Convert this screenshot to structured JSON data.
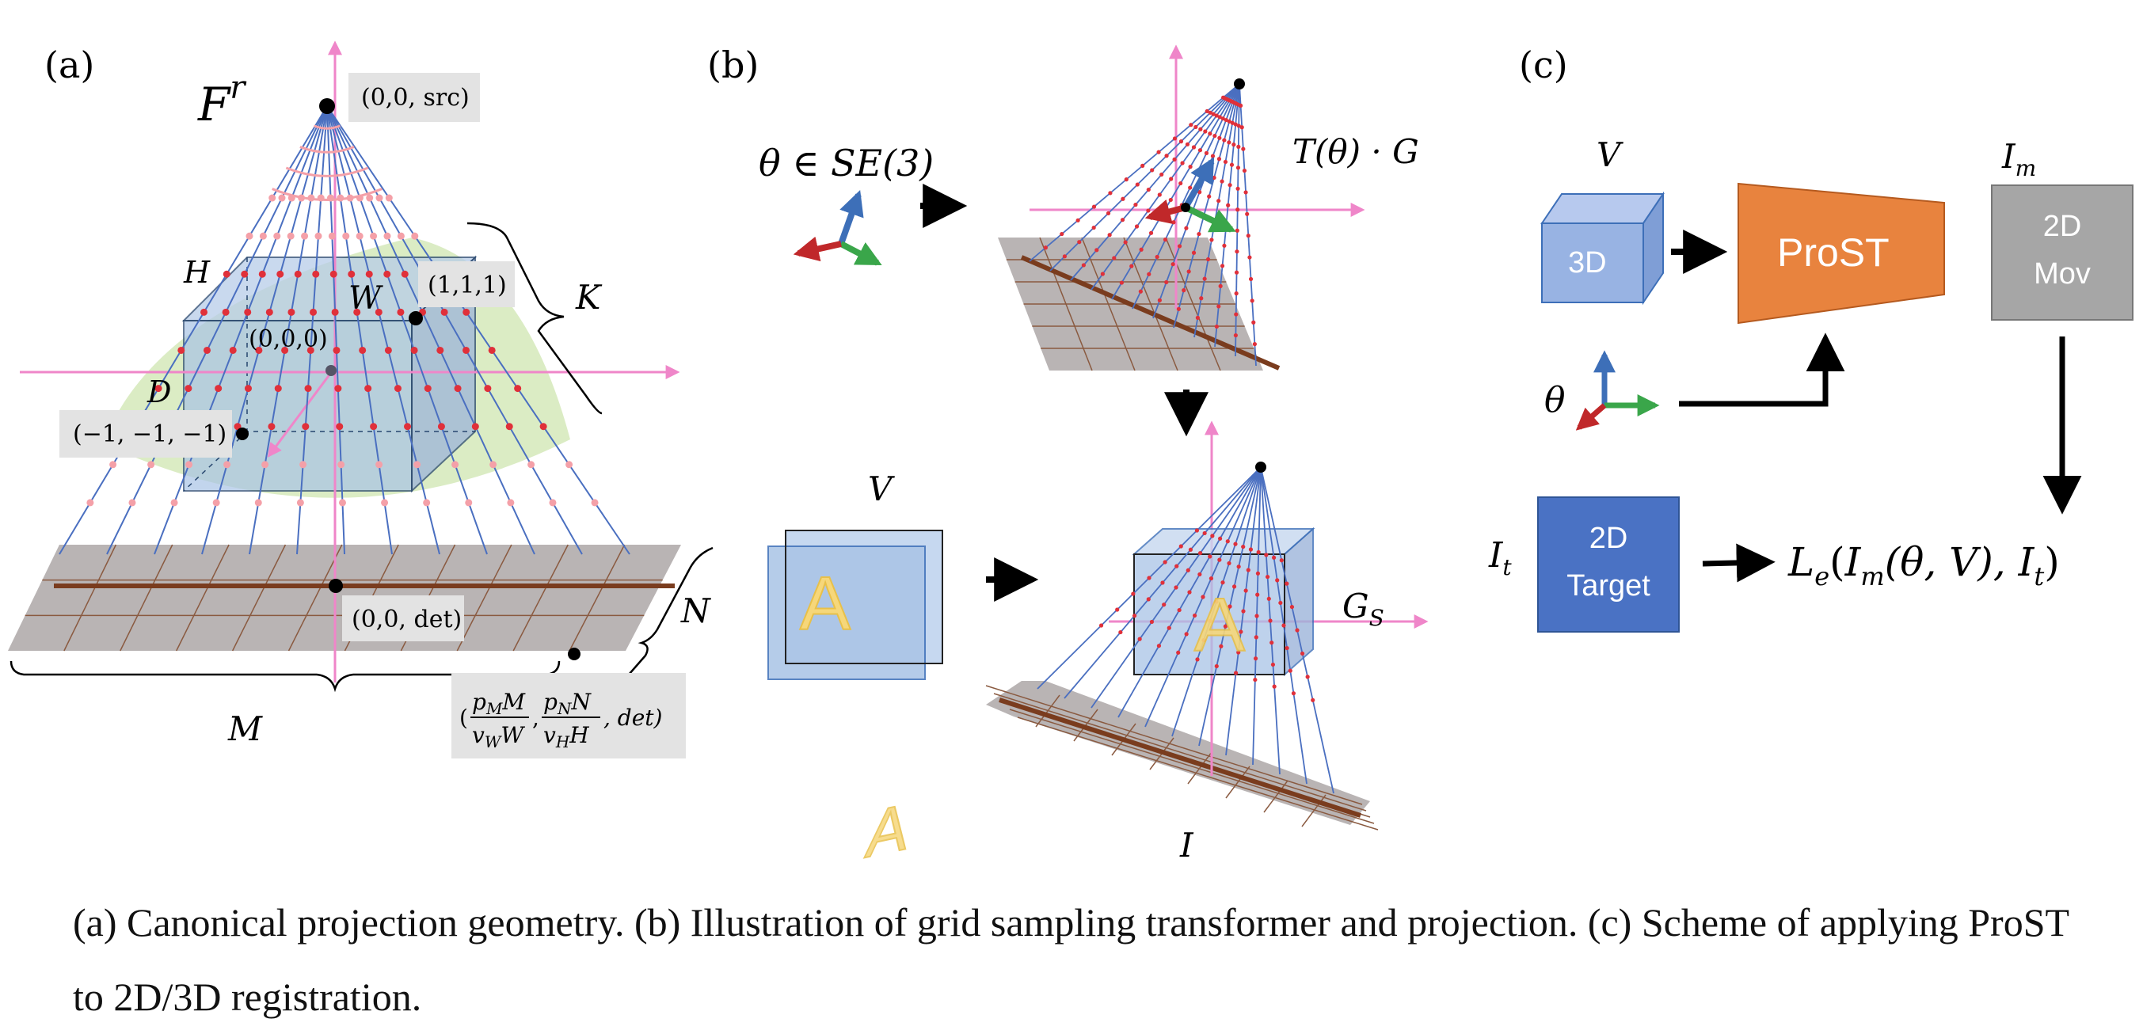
{
  "panels": {
    "a": {
      "label": "(a)",
      "source_symbol": "F",
      "source_superscript": "r",
      "src_coord": "(0,0, src)",
      "label_H": "H",
      "label_W": "W",
      "label_D": "D",
      "label_K": "K",
      "label_M": "M",
      "label_N": "N",
      "coord_111": "(1,1,1)",
      "coord_000": "(0,0,0)",
      "coord_neg": "(−1, −1, −1)",
      "det_coord": "(0,0, det)",
      "corner_coord": {
        "open": "(",
        "num1": "p",
        "num1_sub": "M",
        "num1_tail": "M",
        "den1": "v",
        "den1_sub": "W",
        "den1_tail": "W",
        "num2": "p",
        "num2_sub": "N",
        "num2_tail": "N",
        "den2": "v",
        "den2_sub": "H",
        "den2_tail": "H",
        "tail": ", det)"
      }
    },
    "b": {
      "label": "(b)",
      "theta_label": "θ ∈ SE(3)",
      "transform_label": "T(θ) · G",
      "volume_label": "V",
      "letter": "A",
      "grid_label": "G",
      "grid_sub": "S",
      "image_label": "I"
    },
    "c": {
      "label": "(c)",
      "volume_label": "V",
      "box_3d": "3D",
      "prost": "ProST",
      "mov_label": "I",
      "mov_sub": "m",
      "box_mov_line1": "2D",
      "box_mov_line2": "Mov",
      "theta": "θ",
      "target_label": "I",
      "target_sub": "t",
      "box_target_line1": "2D",
      "box_target_line2": "Target",
      "loss": {
        "L": "L",
        "L_sub": "e",
        "open": "(",
        "I": "I",
        "I_sub": "m",
        "args": "(θ, V), ",
        "I2": "I",
        "I2_sub": "t",
        "close": ")"
      }
    }
  },
  "colors": {
    "ray": "#4a6fc0",
    "axis": "#ef86c9",
    "dot_red": "#e0303a",
    "dot_pink": "#f4a0a8",
    "plane": "#b9b4b4",
    "plane_line": "#8a5a40",
    "plane_center": "#7a3c1e",
    "cube_fill": "#a9c4e6",
    "arc_fill": "#cfe6b0",
    "prost": "#e8833e",
    "box_3d": "#98b3e3",
    "box_mov": "#a6a6a6",
    "box_target": "#4a72c4",
    "label_bg": "#e3e3e3",
    "letter_fill": "#f6d77a"
  },
  "caption": "(a) Canonical projection geometry. (b) Illustration of grid sampling transformer and projection. (c) Scheme of applying ProST to 2D/3D registration."
}
